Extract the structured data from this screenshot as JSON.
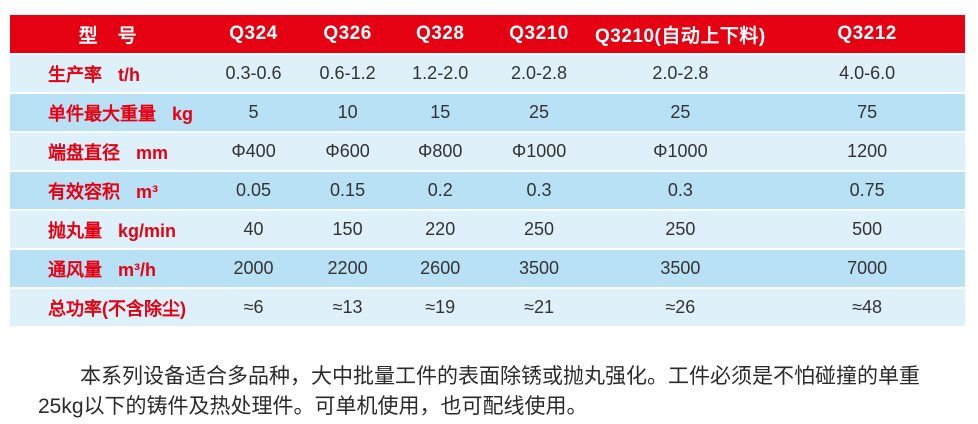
{
  "colors": {
    "header-red": "#e50012",
    "label-red": "#e60012",
    "row-light": "#def0fa",
    "row-mid": "#b9e1f6",
    "value-ink": "#333333",
    "body-ink": "#2b2b2b"
  },
  "table": {
    "header": {
      "model_label": "型　号",
      "models": [
        "Q324",
        "Q326",
        "Q328",
        "Q3210",
        "Q3210(自动上下料)",
        "Q3212"
      ]
    },
    "rows": [
      {
        "label": "生产率",
        "unit": "t/h",
        "values": [
          "0.3-0.6",
          "0.6-1.2",
          "1.2-2.0",
          "2.0-2.8",
          "2.0-2.8",
          "4.0-6.0"
        ]
      },
      {
        "label": "单件最大重量",
        "unit": "kg",
        "values": [
          "5",
          "10",
          "15",
          "25",
          "25",
          "75"
        ]
      },
      {
        "label": "端盘直径",
        "unit": "mm",
        "values": [
          "Φ400",
          "Φ600",
          "Φ800",
          "Φ1000",
          "Φ1000",
          "1200"
        ]
      },
      {
        "label": "有效容积",
        "unit": "m³",
        "values": [
          "0.05",
          "0.15",
          "0.2",
          "0.3",
          "0.3",
          "0.75"
        ]
      },
      {
        "label": "抛丸量",
        "unit": "kg/min",
        "values": [
          "40",
          "150",
          "220",
          "250",
          "250",
          "500"
        ]
      },
      {
        "label": "通风量",
        "unit": "m³/h",
        "values": [
          "2000",
          "2200",
          "2600",
          "3500",
          "3500",
          "7000"
        ]
      },
      {
        "label": "总功率(不含除尘)",
        "unit": "",
        "values": [
          "≈6",
          "≈13",
          "≈19",
          "≈21",
          "≈26",
          "≈48"
        ]
      }
    ]
  },
  "description": "本系列设备适合多品种，大中批量工件的表面除锈或抛丸强化。工件必须是不怕碰撞的单重25kg以下的铸件及热处理件。可单机使用，也可配线使用。"
}
